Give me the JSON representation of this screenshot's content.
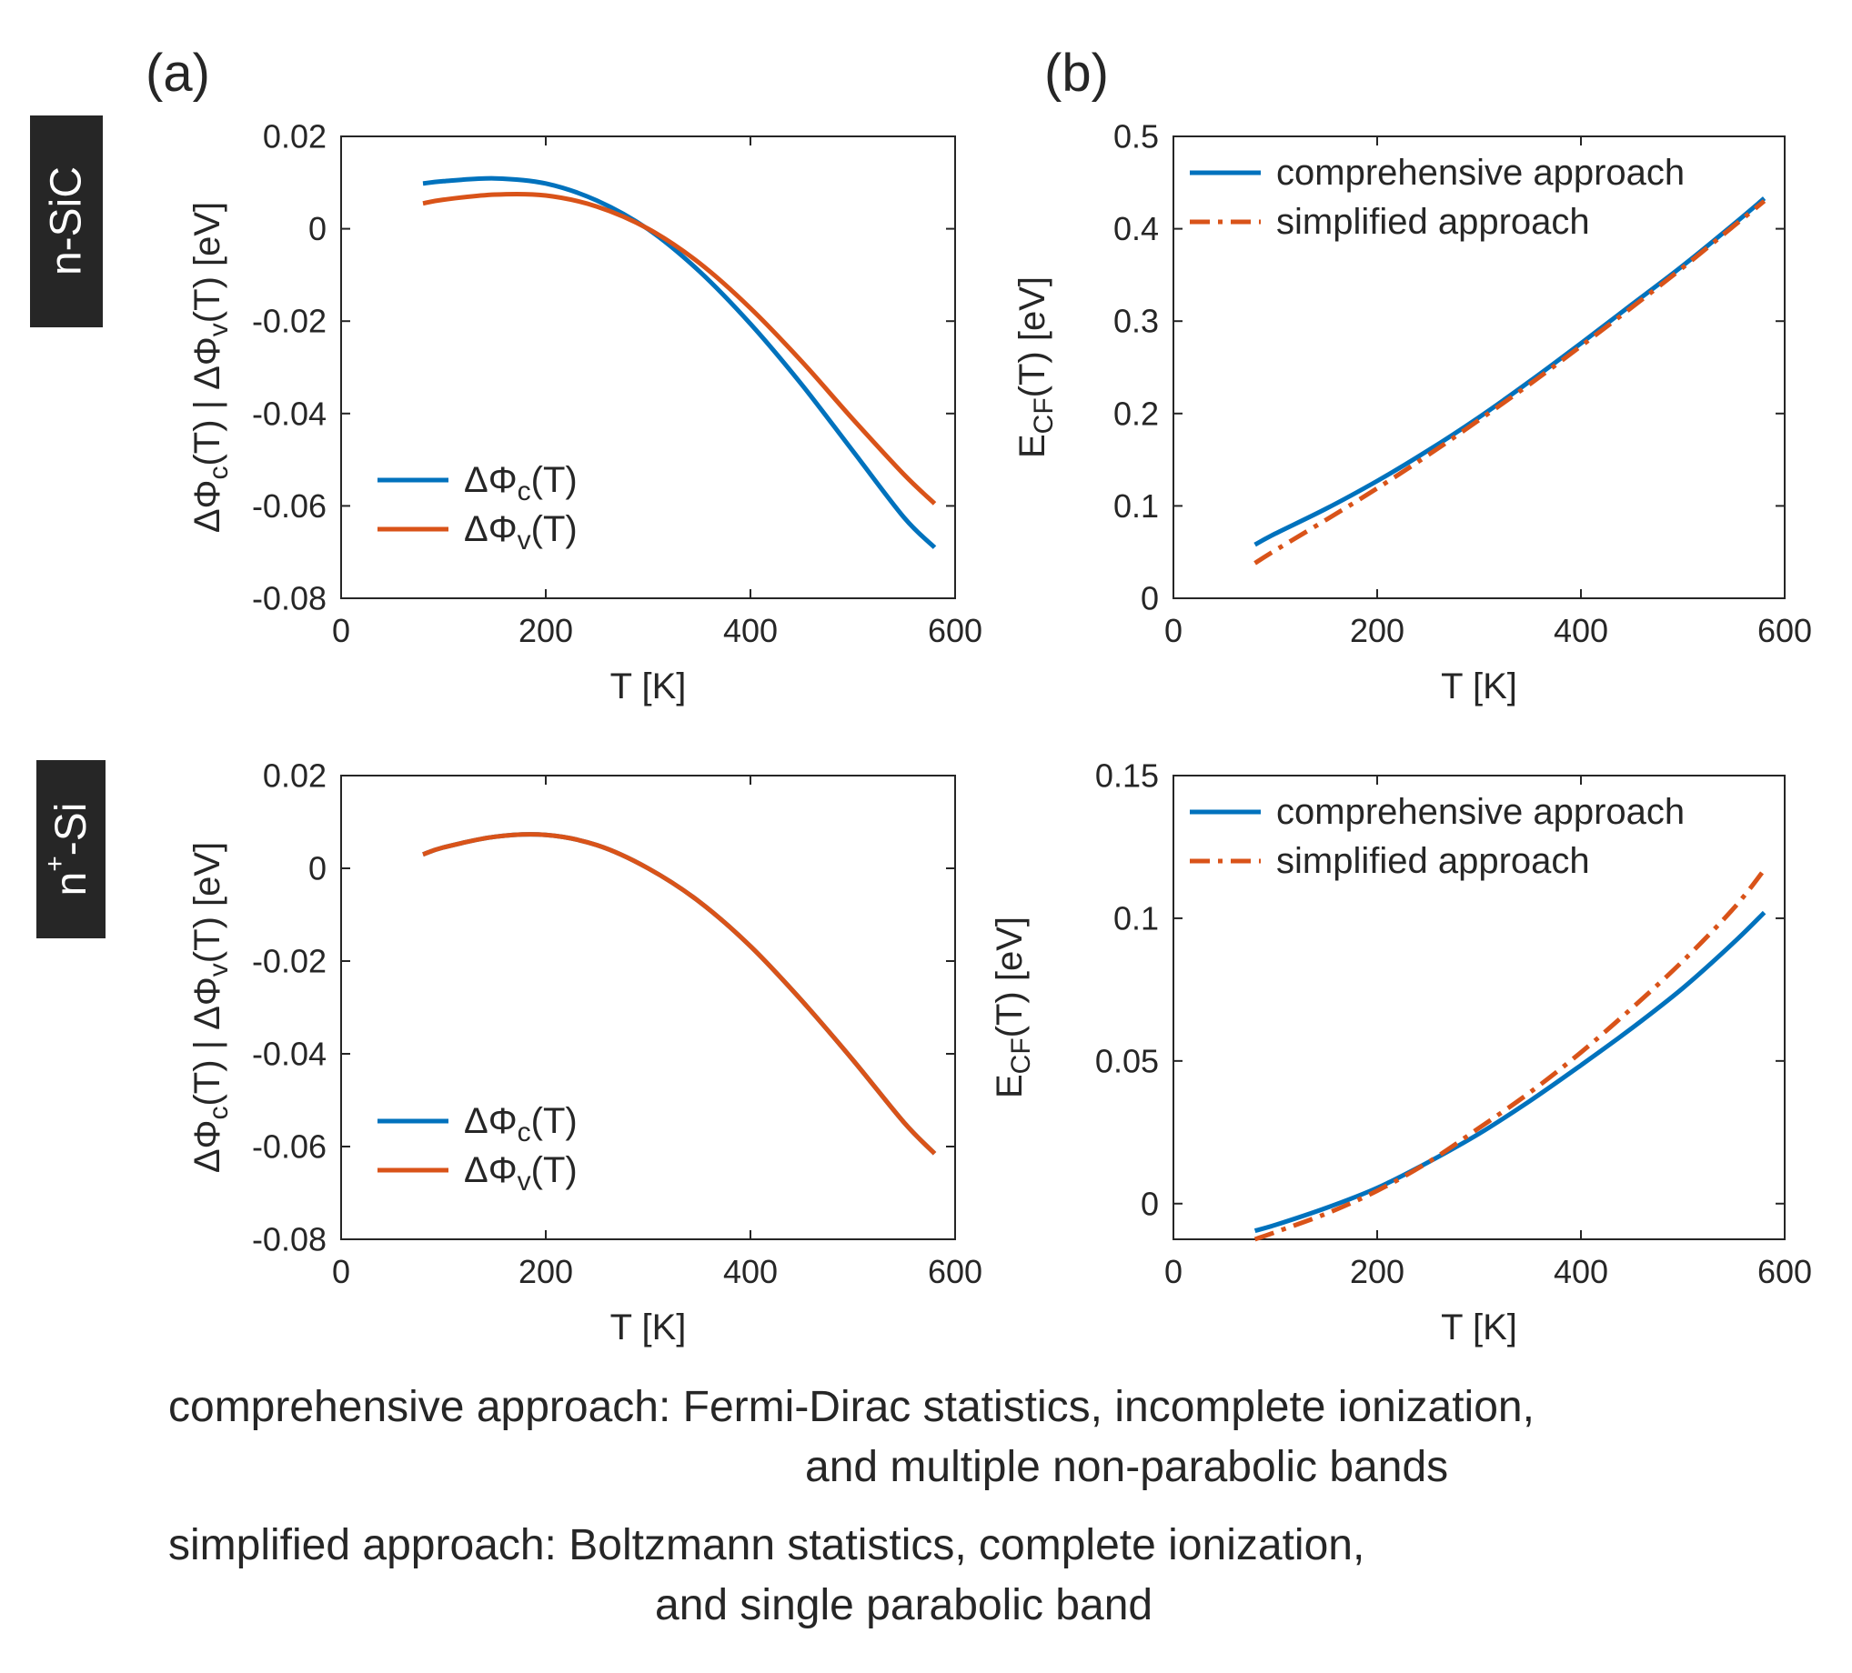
{
  "panel_labels": [
    "(a)",
    "(b)"
  ],
  "row_labels": [
    "n-SiC",
    "n+-Si"
  ],
  "row_label_parts": [
    {
      "base": "n-SiC",
      "sup": ""
    },
    {
      "base": "n",
      "sup": "+",
      "rest": "-Si"
    }
  ],
  "colors": {
    "blue": "#0072BD",
    "orange": "#D95319",
    "axis": "#262626",
    "row_label_bg": "#262626"
  },
  "notes": {
    "comprehensive_line1": "comprehensive approach: Fermi-Dirac statistics, incomplete ionization,",
    "comprehensive_line2": "and multiple non-parabolic bands",
    "simplified_line1": "simplified approach: Boltzmann statistics, complete ionization,",
    "simplified_line2": "and single parabolic band"
  },
  "chart_data": [
    {
      "id": "a-top",
      "type": "line",
      "row": "n-SiC",
      "panel": "(a)",
      "xlabel": "T [K]",
      "ylabel": "ΔΦc(T) | ΔΦv(T) [eV]",
      "xlim": [
        0,
        600
      ],
      "ylim": [
        -0.08,
        0.02
      ],
      "xticks": [
        0,
        200,
        400,
        600
      ],
      "yticks": [
        -0.08,
        -0.06,
        -0.04,
        -0.02,
        0,
        0.02
      ],
      "xtick_labels": [
        "0",
        "200",
        "400",
        "600"
      ],
      "ytick_labels": [
        "-0.08",
        "-0.06",
        "-0.04",
        "-0.02",
        "0",
        "0.02"
      ],
      "legend_position": "bottom-left",
      "grid": false,
      "series": [
        {
          "name": "ΔΦc(T)",
          "color": "#0072BD",
          "style": "solid",
          "x": [
            80,
            100,
            150,
            200,
            250,
            300,
            350,
            400,
            450,
            500,
            550,
            580
          ],
          "y": [
            0.0098,
            0.0103,
            0.0109,
            0.0098,
            0.0061,
            -0.0001,
            -0.0092,
            -0.0206,
            -0.0337,
            -0.0481,
            -0.0625,
            -0.069
          ]
        },
        {
          "name": "ΔΦv(T)",
          "color": "#D95319",
          "style": "solid",
          "x": [
            80,
            100,
            150,
            200,
            250,
            300,
            350,
            400,
            450,
            500,
            550,
            580
          ],
          "y": [
            0.0055,
            0.0063,
            0.0074,
            0.0072,
            0.0048,
            0.0,
            -0.0074,
            -0.0172,
            -0.0287,
            -0.0412,
            -0.0532,
            -0.0595
          ]
        }
      ]
    },
    {
      "id": "b-top",
      "type": "line",
      "row": "n-SiC",
      "panel": "(b)",
      "xlabel": "T [K]",
      "ylabel": "ECF(T) [eV]",
      "xlim": [
        0,
        600
      ],
      "ylim": [
        0,
        0.5
      ],
      "xticks": [
        0,
        200,
        400,
        600
      ],
      "yticks": [
        0,
        0.1,
        0.2,
        0.3,
        0.4,
        0.5
      ],
      "xtick_labels": [
        "0",
        "200",
        "400",
        "600"
      ],
      "ytick_labels": [
        "0",
        "0.1",
        "0.2",
        "0.3",
        "0.4",
        "0.5"
      ],
      "legend_position": "top-left",
      "grid": false,
      "series": [
        {
          "name": "comprehensive approach",
          "color": "#0072BD",
          "style": "solid",
          "x": [
            80,
            100,
            150,
            200,
            250,
            300,
            350,
            400,
            450,
            500,
            550,
            580
          ],
          "y": [
            0.058,
            0.07,
            0.097,
            0.127,
            0.16,
            0.196,
            0.235,
            0.276,
            0.318,
            0.36,
            0.405,
            0.433
          ]
        },
        {
          "name": "simplified approach",
          "color": "#D95319",
          "style": "dashdot",
          "x": [
            80,
            100,
            150,
            200,
            250,
            300,
            350,
            400,
            450,
            500,
            550,
            580
          ],
          "y": [
            0.038,
            0.052,
            0.085,
            0.119,
            0.155,
            0.193,
            0.232,
            0.273,
            0.315,
            0.358,
            0.403,
            0.43
          ]
        }
      ]
    },
    {
      "id": "a-bottom",
      "type": "line",
      "row": "n+-Si",
      "panel": "(a)",
      "xlabel": "T [K]",
      "ylabel": "ΔΦc(T) | ΔΦv(T) [eV]",
      "xlim": [
        0,
        600
      ],
      "ylim": [
        -0.08,
        0.02
      ],
      "xticks": [
        0,
        200,
        400,
        600
      ],
      "yticks": [
        -0.08,
        -0.06,
        -0.04,
        -0.02,
        0,
        0.02
      ],
      "xtick_labels": [
        "0",
        "200",
        "400",
        "600"
      ],
      "ytick_labels": [
        "-0.08",
        "-0.06",
        "-0.04",
        "-0.02",
        "0",
        "0.02"
      ],
      "legend_position": "bottom-left",
      "grid": false,
      "series": [
        {
          "name": "ΔΦc(T)",
          "color": "#0072BD",
          "style": "solid",
          "x": [
            80,
            100,
            150,
            200,
            250,
            300,
            350,
            400,
            450,
            500,
            550,
            580
          ],
          "y": [
            0.003,
            0.0045,
            0.0068,
            0.0072,
            0.005,
            0.0,
            -0.0072,
            -0.0168,
            -0.0285,
            -0.0413,
            -0.0548,
            -0.0615
          ]
        },
        {
          "name": "ΔΦv(T)",
          "color": "#D95319",
          "style": "solid",
          "x": [
            80,
            100,
            150,
            200,
            250,
            300,
            350,
            400,
            450,
            500,
            550,
            580
          ],
          "y": [
            0.003,
            0.0045,
            0.0068,
            0.0072,
            0.005,
            0.0,
            -0.0072,
            -0.0168,
            -0.0285,
            -0.0413,
            -0.0548,
            -0.0615
          ]
        }
      ]
    },
    {
      "id": "b-bottom",
      "type": "line",
      "row": "n+-Si",
      "panel": "(b)",
      "xlabel": "T [K]",
      "ylabel": "ECF(T) [eV]",
      "xlim": [
        0,
        600
      ],
      "ylim": [
        -0.0125,
        0.15
      ],
      "xticks": [
        0,
        200,
        400,
        600
      ],
      "yticks": [
        0,
        0.05,
        0.1,
        0.15
      ],
      "xtick_labels": [
        "0",
        "200",
        "400",
        "600"
      ],
      "ytick_labels": [
        "0",
        "0.05",
        "0.1",
        "0.15"
      ],
      "legend_position": "top-left",
      "grid": false,
      "series": [
        {
          "name": "comprehensive approach",
          "color": "#0072BD",
          "style": "solid",
          "x": [
            80,
            100,
            150,
            200,
            250,
            300,
            350,
            400,
            450,
            500,
            550,
            580
          ],
          "y": [
            -0.0095,
            -0.0075,
            -0.0015,
            0.0055,
            0.0145,
            0.0245,
            0.036,
            0.0485,
            0.0615,
            0.0755,
            0.0915,
            0.102
          ]
        },
        {
          "name": "simplified approach",
          "color": "#D95319",
          "style": "dashdot",
          "x": [
            80,
            100,
            150,
            200,
            250,
            300,
            350,
            400,
            450,
            500,
            550,
            580
          ],
          "y": [
            -0.0125,
            -0.01,
            -0.0035,
            0.0045,
            0.0145,
            0.0265,
            0.039,
            0.053,
            0.0685,
            0.085,
            0.1035,
            0.117
          ]
        }
      ]
    }
  ]
}
